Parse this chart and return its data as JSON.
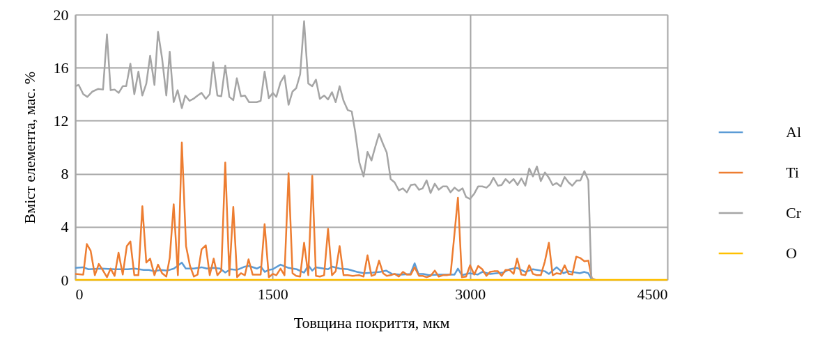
{
  "chart_data": {
    "type": "line",
    "xlabel": "Товщина покриття, мкм",
    "ylabel": "Вміст елемента, мас. %",
    "xlim": [
      0,
      4500
    ],
    "xticks": [
      0,
      1500,
      3000,
      4500
    ],
    "ylim": [
      0,
      20
    ],
    "yticks": [
      0,
      4,
      8,
      12,
      16,
      20
    ],
    "grid": true,
    "legend": "right",
    "series": [
      {
        "name": "Al",
        "color": "#5b9bd5",
        "x": [
          0,
          60,
          100,
          200,
          300,
          400,
          450,
          520,
          560,
          600,
          650,
          700,
          750,
          810,
          840,
          900,
          960,
          1000,
          1050,
          1100,
          1140,
          1180,
          1230,
          1290,
          1320,
          1380,
          1410,
          1440,
          1470,
          1500,
          1560,
          1621,
          1683,
          1739,
          1771,
          1801,
          1829,
          1921,
          1951,
          2009,
          2071,
          2141,
          2194,
          2265,
          2317,
          2362,
          2406,
          2476,
          2547,
          2579,
          2608,
          2644,
          2688,
          2758,
          2882,
          2908,
          2938,
          2996,
          3058,
          3093,
          3152,
          3252,
          3300,
          3358,
          3420,
          3478,
          3569,
          3599,
          3658,
          3710,
          3746,
          3834,
          3869,
          3899,
          3926
        ],
        "values": [
          0.9,
          0.95,
          0.8,
          0.85,
          0.8,
          0.8,
          0.85,
          0.75,
          0.75,
          0.65,
          0.75,
          0.7,
          0.85,
          1.3,
          0.85,
          0.85,
          0.95,
          0.85,
          0.9,
          0.85,
          0.55,
          0.8,
          0.75,
          1.0,
          1.05,
          0.85,
          1.0,
          0.6,
          0.75,
          0.8,
          1.15,
          0.9,
          0.8,
          0.55,
          1.1,
          0.7,
          0.95,
          0.8,
          1.0,
          0.85,
          0.8,
          0.6,
          0.5,
          0.55,
          0.6,
          0.7,
          0.45,
          0.4,
          0.45,
          1.25,
          0.45,
          0.45,
          0.35,
          0.4,
          0.4,
          0.85,
          0.35,
          0.5,
          0.4,
          0.6,
          0.45,
          0.55,
          0.8,
          0.9,
          0.6,
          0.8,
          0.65,
          0.45,
          0.95,
          0.5,
          0.65,
          0.5,
          0.6,
          0.5,
          0
        ]
      },
      {
        "name": "Ti",
        "color": "#ed7d31",
        "x": [
          0,
          61,
          88,
          117,
          149,
          179,
          211,
          241,
          269,
          299,
          329,
          361,
          392,
          419,
          449,
          480,
          510,
          540,
          569,
          602,
          629,
          660,
          692,
          718,
          748,
          780,
          810,
          842,
          872,
          902,
          930,
          960,
          992,
          1022,
          1052,
          1080,
          1110,
          1140,
          1171,
          1201,
          1230,
          1259,
          1289,
          1317,
          1348,
          1379,
          1409,
          1439,
          1471,
          1501,
          1528,
          1560,
          1590,
          1621,
          1651,
          1679,
          1709,
          1739,
          1771,
          1801,
          1829,
          1859,
          1891,
          1921,
          1951,
          1979,
          2009,
          2039,
          2071,
          2106,
          2159,
          2191,
          2221,
          2251,
          2279,
          2309,
          2339,
          2367,
          2397,
          2427,
          2459,
          2490,
          2520,
          2550,
          2579,
          2612,
          2640,
          2670,
          2700,
          2732,
          2762,
          2794,
          2824,
          2852,
          2882,
          2908,
          2938,
          2970,
          3000,
          3032,
          3062,
          3093,
          3125,
          3152,
          3182,
          3212,
          3240,
          3270,
          3300,
          3331,
          3358,
          3390,
          3420,
          3450,
          3478,
          3508,
          3538,
          3569,
          3599,
          3628,
          3658,
          3689,
          3719,
          3749,
          3777,
          3807,
          3837,
          3869,
          3899,
          3926,
          3952
        ],
        "values": [
          0.45,
          0.4,
          2.7,
          2.2,
          0.35,
          1.2,
          0.7,
          0.2,
          0.85,
          0.3,
          2.05,
          0.4,
          2.55,
          2.9,
          0.35,
          0.35,
          5.55,
          1.3,
          1.6,
          0.35,
          1.15,
          0.5,
          0.25,
          1.65,
          5.7,
          0.35,
          10.35,
          2.55,
          1.05,
          0.25,
          0.4,
          2.3,
          2.6,
          0.35,
          1.6,
          0.35,
          0.7,
          8.85,
          0.35,
          5.5,
          0.2,
          0.5,
          0.35,
          1.55,
          0.4,
          0.4,
          0.4,
          4.2,
          0.2,
          0.45,
          0.35,
          0.85,
          0.35,
          8.05,
          0.5,
          0.3,
          0.25,
          2.8,
          0.35,
          7.85,
          0.3,
          0.25,
          0.35,
          3.85,
          0.35,
          0.65,
          2.55,
          0.35,
          0.35,
          0.3,
          0.35,
          0.25,
          1.85,
          0.3,
          0.4,
          1.45,
          0.5,
          0.3,
          0.35,
          0.45,
          0.25,
          0.6,
          0.4,
          0.4,
          0.95,
          0.3,
          0.3,
          0.2,
          0.3,
          0.7,
          0.25,
          0.35,
          0.35,
          0.4,
          3.5,
          6.2,
          0.2,
          0.25,
          1.1,
          0.4,
          1.05,
          0.8,
          0.3,
          0.6,
          0.65,
          0.65,
          0.3,
          0.75,
          0.75,
          0.45,
          1.6,
          0.4,
          0.35,
          1.1,
          0.45,
          0.35,
          0.35,
          1.4,
          2.8,
          0.35,
          0.5,
          0.45,
          1.1,
          0.45,
          0.4,
          1.75,
          1.65,
          1.4,
          1.45,
          0.1,
          0
        ]
      },
      {
        "name": "Cr",
        "color": "#a5a5a5",
        "x": [
          0,
          26,
          61,
          92,
          131,
          175,
          211,
          241,
          269,
          299,
          330,
          361,
          387,
          419,
          449,
          480,
          510,
          540,
          569,
          602,
          629,
          660,
          692,
          718,
          748,
          778,
          810,
          836,
          868,
          898,
          930,
          960,
          992,
          1022,
          1048,
          1080,
          1110,
          1140,
          1171,
          1201,
          1228,
          1259,
          1289,
          1321,
          1348,
          1379,
          1409,
          1439,
          1471,
          1501,
          1528,
          1560,
          1590,
          1621,
          1651,
          1679,
          1709,
          1739,
          1771,
          1801,
          1829,
          1859,
          1891,
          1921,
          1951,
          1979,
          2009,
          2039,
          2071,
          2101,
          2127,
          2159,
          2191,
          2221,
          2251,
          2279,
          2309,
          2339,
          2367,
          2397,
          2427,
          2459,
          2490,
          2520,
          2550,
          2582,
          2612,
          2640,
          2670,
          2700,
          2732,
          2762,
          2794,
          2824,
          2852,
          2882,
          2914,
          2943,
          2970,
          3000,
          3032,
          3062,
          3093,
          3125,
          3152,
          3178,
          3212,
          3240,
          3270,
          3300,
          3331,
          3361,
          3390,
          3420,
          3450,
          3478,
          3508,
          3538,
          3569,
          3599,
          3628,
          3658,
          3689,
          3719,
          3749,
          3777,
          3811,
          3839,
          3869,
          3899,
          3922,
          3948
        ],
        "values": [
          14.6,
          14.7,
          14.0,
          13.8,
          14.2,
          14.4,
          14.35,
          18.5,
          14.3,
          14.35,
          14.1,
          14.6,
          14.6,
          16.3,
          14.0,
          15.7,
          13.9,
          14.8,
          16.9,
          14.7,
          18.7,
          16.7,
          13.9,
          17.2,
          13.4,
          14.3,
          12.95,
          13.9,
          13.5,
          13.65,
          13.9,
          14.1,
          13.65,
          14.0,
          16.4,
          13.9,
          13.85,
          16.15,
          13.8,
          13.55,
          15.2,
          13.85,
          13.9,
          13.4,
          13.4,
          13.4,
          13.5,
          15.7,
          13.7,
          14.1,
          13.8,
          14.9,
          15.4,
          13.2,
          14.2,
          14.45,
          15.5,
          19.5,
          14.8,
          14.6,
          15.1,
          13.65,
          13.9,
          13.6,
          14.15,
          13.4,
          14.6,
          13.5,
          12.8,
          12.7,
          11.2,
          8.85,
          7.8,
          9.65,
          9.0,
          10.0,
          11.0,
          10.25,
          9.6,
          7.6,
          7.35,
          6.75,
          6.9,
          6.6,
          7.15,
          7.2,
          6.8,
          6.9,
          7.5,
          6.55,
          7.25,
          6.8,
          7.05,
          7.05,
          6.6,
          6.95,
          6.7,
          6.9,
          6.25,
          6.1,
          6.5,
          7.05,
          7.05,
          6.95,
          7.2,
          7.7,
          7.1,
          7.15,
          7.6,
          7.3,
          7.6,
          7.15,
          7.65,
          7.1,
          8.4,
          7.8,
          8.55,
          7.45,
          8.1,
          7.7,
          7.15,
          7.3,
          7.05,
          7.75,
          7.35,
          7.1,
          7.5,
          7.5,
          8.2,
          7.5,
          0.15,
          0
        ]
      },
      {
        "name": "O",
        "color": "#ffc000",
        "x": [
          0,
          4500
        ],
        "values": [
          0,
          0
        ]
      }
    ]
  }
}
